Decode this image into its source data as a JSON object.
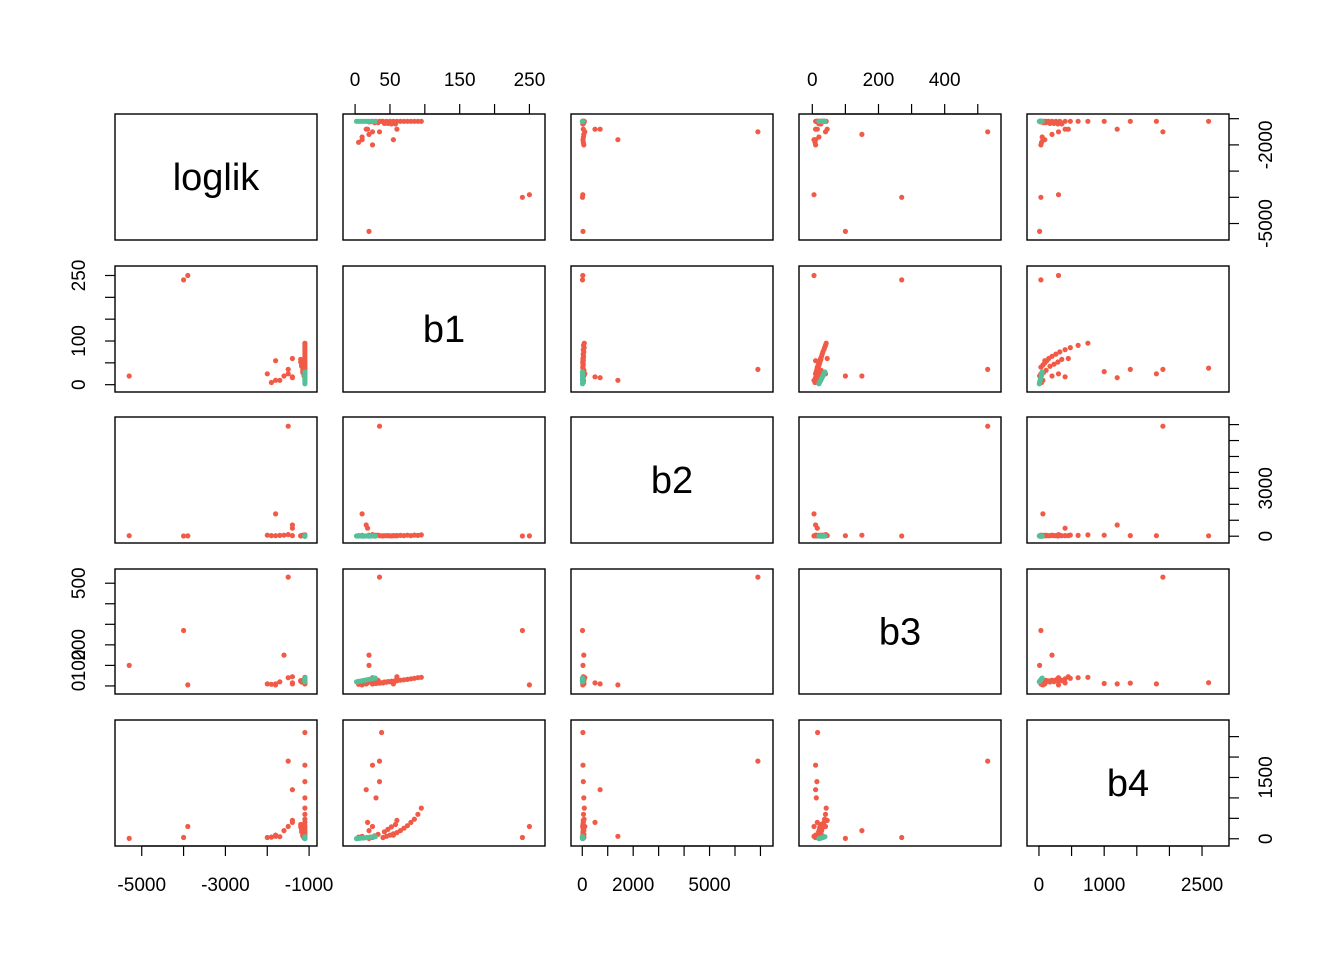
{
  "chart_data": {
    "type": "scatter",
    "title": "",
    "variables": [
      "loglik",
      "b1",
      "b2",
      "b3",
      "b4"
    ],
    "colors": {
      "red": "#F05A46",
      "green": "#55C09A"
    },
    "ranges": {
      "loglik": [
        -5400,
        -1050
      ],
      "b1": [
        -3,
        258
      ],
      "b2": [
        -50,
        7100
      ],
      "b3": [
        -10,
        540
      ],
      "b4": [
        -30,
        2760
      ]
    },
    "ticks": {
      "loglik": {
        "values": [
          -5000,
          -4000,
          -3000,
          -2000,
          -1000
        ],
        "labels": [
          "-5000",
          "",
          "-3000",
          "",
          "-1000"
        ]
      },
      "b1": {
        "values": [
          0,
          50,
          100,
          150,
          200,
          250
        ],
        "labels": [
          "0",
          "50",
          "",
          "150",
          "",
          "250"
        ]
      },
      "b2": {
        "values": [
          0,
          1000,
          2000,
          3000,
          4000,
          5000,
          6000,
          7000
        ],
        "labels": [
          "0",
          "",
          "2000",
          "",
          "",
          "5000",
          "",
          ""
        ]
      },
      "b3": {
        "values": [
          0,
          100,
          200,
          300,
          400,
          500
        ],
        "labels": [
          "0",
          "",
          "200",
          "",
          "400",
          ""
        ]
      },
      "b4": {
        "values": [
          0,
          500,
          1000,
          1500,
          2000,
          2500
        ],
        "labels": [
          "0",
          "",
          "1000",
          "",
          "",
          "2500"
        ]
      }
    },
    "ticks_right": {
      "loglik": {
        "values": [
          -1000,
          -2000,
          -3000,
          -4000,
          -5000
        ],
        "labels": [
          "",
          "-2000",
          "",
          "",
          "-5000"
        ]
      },
      "b2": {
        "values": [
          0,
          1000,
          2000,
          3000,
          4000,
          5000,
          6000,
          7000
        ],
        "labels": [
          "0",
          "",
          "",
          "3000",
          "",
          "",
          "",
          ""
        ]
      },
      "b4": {
        "values": [
          0,
          500,
          1000,
          1500,
          2000,
          2500
        ],
        "labels": [
          "0",
          "",
          "",
          "1500",
          "",
          ""
        ]
      }
    },
    "ticks_left": {
      "b1": {
        "values": [
          0,
          50,
          100,
          150,
          200,
          250
        ],
        "labels": [
          "0",
          "",
          "100",
          "",
          "",
          "250"
        ]
      },
      "b3": {
        "values": [
          0,
          100,
          200,
          300,
          400,
          500
        ],
        "labels": [
          "0",
          "100",
          "200",
          "",
          "",
          "500"
        ]
      }
    },
    "points": [
      {
        "loglik": -1100,
        "b1": 40,
        "b2": 20,
        "b3": 15,
        "b4": 30,
        "group": "red"
      },
      {
        "loglik": -1100,
        "b1": 45,
        "b2": 30,
        "b3": 18,
        "b4": 60,
        "group": "red"
      },
      {
        "loglik": -1100,
        "b1": 50,
        "b2": 25,
        "b3": 20,
        "b4": 90,
        "group": "red"
      },
      {
        "loglik": -1100,
        "b1": 55,
        "b2": 40,
        "b3": 22,
        "b4": 120,
        "group": "red"
      },
      {
        "loglik": -1100,
        "b1": 60,
        "b2": 30,
        "b3": 25,
        "b4": 150,
        "group": "red"
      },
      {
        "loglik": -1100,
        "b1": 65,
        "b2": 50,
        "b3": 28,
        "b4": 200,
        "group": "red"
      },
      {
        "loglik": -1100,
        "b1": 70,
        "b2": 35,
        "b3": 30,
        "b4": 260,
        "group": "red"
      },
      {
        "loglik": -1100,
        "b1": 75,
        "b2": 60,
        "b3": 32,
        "b4": 320,
        "group": "red"
      },
      {
        "loglik": -1100,
        "b1": 80,
        "b2": 40,
        "b3": 35,
        "b4": 400,
        "group": "red"
      },
      {
        "loglik": -1100,
        "b1": 85,
        "b2": 70,
        "b3": 37,
        "b4": 480,
        "group": "red"
      },
      {
        "loglik": -1100,
        "b1": 90,
        "b2": 50,
        "b3": 40,
        "b4": 600,
        "group": "red"
      },
      {
        "loglik": -1100,
        "b1": 95,
        "b2": 80,
        "b3": 42,
        "b4": 750,
        "group": "red"
      },
      {
        "loglik": -1100,
        "b1": 30,
        "b2": 60,
        "b3": 12,
        "b4": 1000,
        "group": "red"
      },
      {
        "loglik": -1100,
        "b1": 35,
        "b2": 40,
        "b3": 14,
        "b4": 1400,
        "group": "red"
      },
      {
        "loglik": -1100,
        "b1": 25,
        "b2": 30,
        "b3": 10,
        "b4": 1800,
        "group": "red"
      },
      {
        "loglik": -1100,
        "b1": 38,
        "b2": 25,
        "b3": 16,
        "b4": 2600,
        "group": "red"
      },
      {
        "loglik": -1120,
        "b1": 20,
        "b2": 45,
        "b3": 20,
        "b4": 20,
        "group": "red"
      },
      {
        "loglik": -1120,
        "b1": 22,
        "b2": 35,
        "b3": 24,
        "b4": 40,
        "group": "red"
      },
      {
        "loglik": -1150,
        "b1": 28,
        "b2": 55,
        "b3": 26,
        "b4": 70,
        "group": "red"
      },
      {
        "loglik": -1150,
        "b1": 33,
        "b2": 65,
        "b3": 27,
        "b4": 110,
        "group": "red"
      },
      {
        "loglik": -1180,
        "b1": 42,
        "b2": 30,
        "b3": 19,
        "b4": 170,
        "group": "red"
      },
      {
        "loglik": -1180,
        "b1": 47,
        "b2": 40,
        "b3": 21,
        "b4": 230,
        "group": "red"
      },
      {
        "loglik": -1200,
        "b1": 52,
        "b2": 20,
        "b3": 23,
        "b4": 290,
        "group": "red"
      },
      {
        "loglik": -1200,
        "b1": 58,
        "b2": 30,
        "b3": 26,
        "b4": 350,
        "group": "red"
      },
      {
        "loglik": -1400,
        "b1": 18,
        "b2": 500,
        "b3": 15,
        "b4": 400,
        "group": "red"
      },
      {
        "loglik": -1400,
        "b1": 16,
        "b2": 700,
        "b3": 10,
        "b4": 1200,
        "group": "red"
      },
      {
        "loglik": -1400,
        "b1": 60,
        "b2": 40,
        "b3": 45,
        "b4": 450,
        "group": "red"
      },
      {
        "loglik": -1500,
        "b1": 25,
        "b2": 100,
        "b3": 40,
        "b4": 300,
        "group": "red"
      },
      {
        "loglik": -1500,
        "b1": 35,
        "b2": 6900,
        "b3": 530,
        "b4": 1900,
        "group": "red"
      },
      {
        "loglik": -1600,
        "b1": 20,
        "b2": 60,
        "b3": 150,
        "b4": 200,
        "group": "red"
      },
      {
        "loglik": -1700,
        "b1": 10,
        "b2": 50,
        "b3": 20,
        "b4": 50,
        "group": "red"
      },
      {
        "loglik": -1800,
        "b1": 55,
        "b2": 30,
        "b3": 10,
        "b4": 90,
        "group": "red"
      },
      {
        "loglik": -1800,
        "b1": 10,
        "b2": 1400,
        "b3": 5,
        "b4": 60,
        "group": "red"
      },
      {
        "loglik": -1900,
        "b1": 5,
        "b2": 40,
        "b3": 8,
        "b4": 40,
        "group": "red"
      },
      {
        "loglik": -2000,
        "b1": 25,
        "b2": 60,
        "b3": 10,
        "b4": 30,
        "group": "red"
      },
      {
        "loglik": -3900,
        "b1": 250,
        "b2": 20,
        "b3": 5,
        "b4": 300,
        "group": "red"
      },
      {
        "loglik": -4000,
        "b1": 240,
        "b2": 10,
        "b3": 270,
        "b4": 30,
        "group": "red"
      },
      {
        "loglik": -5300,
        "b1": 20,
        "b2": 30,
        "b3": 100,
        "b4": 10,
        "group": "red"
      },
      {
        "loglik": -1100,
        "b1": 2,
        "b2": 10,
        "b3": 20,
        "b4": 5,
        "group": "green"
      },
      {
        "loglik": -1100,
        "b1": 5,
        "b2": 15,
        "b3": 22,
        "b4": 10,
        "group": "green"
      },
      {
        "loglik": -1100,
        "b1": 8,
        "b2": 20,
        "b3": 24,
        "b4": 15,
        "group": "green"
      },
      {
        "loglik": -1100,
        "b1": 11,
        "b2": 5,
        "b3": 26,
        "b4": 20,
        "group": "green"
      },
      {
        "loglik": -1100,
        "b1": 14,
        "b2": 12,
        "b3": 28,
        "b4": 25,
        "group": "green"
      },
      {
        "loglik": -1100,
        "b1": 17,
        "b2": 18,
        "b3": 30,
        "b4": 30,
        "group": "green"
      },
      {
        "loglik": -1100,
        "b1": 20,
        "b2": 8,
        "b3": 32,
        "b4": 35,
        "group": "green"
      },
      {
        "loglik": -1100,
        "b1": 23,
        "b2": 14,
        "b3": 34,
        "b4": 40,
        "group": "green"
      },
      {
        "loglik": -1100,
        "b1": 26,
        "b2": 22,
        "b3": 36,
        "b4": 45,
        "group": "green"
      },
      {
        "loglik": -1100,
        "b1": 29,
        "b2": 6,
        "b3": 38,
        "b4": 50,
        "group": "green"
      }
    ]
  }
}
